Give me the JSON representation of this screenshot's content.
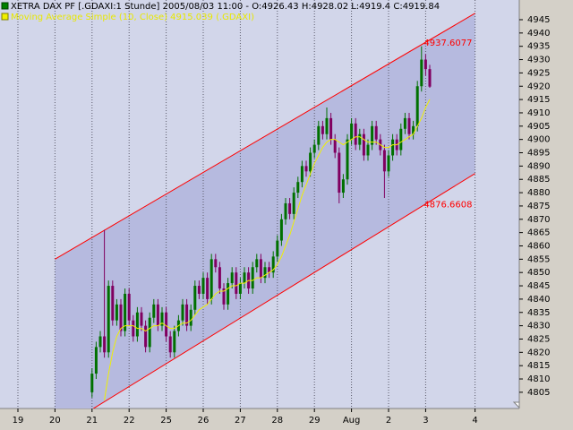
{
  "chart_data": {
    "type": "candlestick",
    "title": "XETRA DAX PF [.GDAXI:1 Stunde] 2005/08/03 11:00 - O:4926.43 H:4928.02 L:4919.4 C:4919.84",
    "categories": [
      "19",
      null,
      null,
      null,
      null,
      null,
      null,
      null,
      null,
      "20",
      null,
      null,
      null,
      null,
      null,
      null,
      null,
      null,
      "21",
      null,
      null,
      null,
      null,
      null,
      null,
      null,
      null,
      "22",
      null,
      null,
      null,
      null,
      null,
      null,
      null,
      null,
      "25",
      null,
      null,
      null,
      null,
      null,
      null,
      null,
      null,
      "26",
      null,
      null,
      null,
      null,
      null,
      null,
      null,
      null,
      "27",
      null,
      null,
      null,
      null,
      null,
      null,
      null,
      null,
      "28",
      null,
      null,
      null,
      null,
      null,
      null,
      null,
      null,
      "29",
      null,
      null,
      null,
      null,
      null,
      null,
      null,
      null,
      "Aug",
      null,
      null,
      null,
      null,
      null,
      null,
      null,
      null,
      "2",
      null,
      null,
      null,
      null,
      null,
      null,
      null,
      null,
      "3",
      null,
      null,
      null,
      null,
      null,
      null,
      null,
      null,
      null,
      null,
      null,
      "4",
      null,
      null,
      null,
      null
    ],
    "open": [
      null,
      null,
      null,
      null,
      null,
      null,
      null,
      null,
      null,
      null,
      null,
      null,
      null,
      null,
      null,
      null,
      null,
      null,
      4805,
      4812,
      4822,
      4826,
      4820,
      4845,
      4832,
      4838,
      4828,
      4842,
      4832,
      4826,
      4835,
      4830,
      4822,
      4833,
      4838,
      4830,
      4835,
      4826,
      4820,
      4828,
      4832,
      4838,
      4830,
      4836,
      4845,
      4842,
      4848,
      4840,
      4855,
      4852,
      4844,
      4838,
      4846,
      4850,
      4842,
      4846,
      4850,
      4844,
      4852,
      4855,
      4848,
      4852,
      4850,
      4856,
      4862,
      4870,
      4876,
      4872,
      4880,
      4884,
      4890,
      4888,
      4895,
      4898,
      4905,
      4902,
      4908,
      4900,
      4895,
      4880,
      4885,
      4900,
      4906,
      4898,
      4902,
      4894,
      4898,
      4905,
      4900,
      4896,
      4888,
      4894,
      4900,
      4896,
      4904,
      4908,
      4902,
      4905,
      4920,
      4930,
      4926.43,
      null,
      null,
      null,
      null,
      null,
      null,
      null,
      null,
      null,
      null,
      null,
      null,
      null,
      null,
      null
    ],
    "high": [
      null,
      null,
      null,
      null,
      null,
      null,
      null,
      null,
      null,
      null,
      null,
      null,
      null,
      null,
      null,
      null,
      null,
      null,
      4814,
      4824,
      4828,
      4866,
      4847,
      4847,
      4840,
      4840,
      4844,
      4844,
      4834,
      4837,
      4837,
      4832,
      4835,
      4840,
      4840,
      4837,
      4837,
      4828,
      4830,
      4834,
      4840,
      4840,
      4838,
      4847,
      4847,
      4850,
      4850,
      4857,
      4857,
      4854,
      4846,
      4848,
      4852,
      4852,
      4848,
      4852,
      4852,
      4854,
      4857,
      4857,
      4854,
      4854,
      4858,
      4864,
      4872,
      4878,
      4878,
      4882,
      4886,
      4892,
      4892,
      4897,
      4900,
      4907,
      4907,
      4912,
      4910,
      4902,
      4897,
      4887,
      4902,
      4908,
      4908,
      4904,
      4904,
      4900,
      4907,
      4907,
      4902,
      4898,
      4896,
      4902,
      4902,
      4906,
      4910,
      4910,
      4907,
      4922,
      4935,
      4932,
      4928.02,
      null,
      null,
      null,
      null,
      null,
      null,
      null,
      null,
      null,
      null,
      null,
      null,
      null,
      null,
      null
    ],
    "low": [
      null,
      null,
      null,
      null,
      null,
      null,
      null,
      null,
      null,
      null,
      null,
      null,
      null,
      null,
      null,
      null,
      null,
      null,
      4803,
      4810,
      4820,
      4818,
      4818,
      4830,
      4830,
      4826,
      4826,
      4830,
      4824,
      4824,
      4828,
      4820,
      4820,
      4831,
      4828,
      4828,
      4824,
      4818,
      4818,
      4826,
      4830,
      4828,
      4828,
      4834,
      4840,
      4840,
      4838,
      4838,
      4850,
      4842,
      4836,
      4836,
      4844,
      4840,
      4840,
      4844,
      4842,
      4842,
      4850,
      4846,
      4846,
      4848,
      4848,
      4854,
      4860,
      4868,
      4870,
      4870,
      4878,
      4882,
      4886,
      4886,
      4893,
      4896,
      4900,
      4900,
      4898,
      4893,
      4876,
      4878,
      4883,
      4898,
      4896,
      4896,
      4892,
      4892,
      4896,
      4898,
      4894,
      4878,
      4886,
      4892,
      4894,
      4894,
      4902,
      4900,
      4900,
      4903,
      4918,
      4924,
      4919.4,
      null,
      null,
      null,
      null,
      null,
      null,
      null,
      null,
      null,
      null,
      null,
      null,
      null,
      null,
      null
    ],
    "close": [
      null,
      null,
      null,
      null,
      null,
      null,
      null,
      null,
      null,
      null,
      null,
      null,
      null,
      null,
      null,
      null,
      null,
      null,
      4812,
      4822,
      4826,
      4820,
      4845,
      4832,
      4838,
      4828,
      4842,
      4832,
      4826,
      4835,
      4830,
      4822,
      4833,
      4838,
      4830,
      4835,
      4826,
      4820,
      4828,
      4832,
      4838,
      4830,
      4836,
      4845,
      4842,
      4848,
      4840,
      4855,
      4852,
      4844,
      4838,
      4846,
      4850,
      4842,
      4846,
      4850,
      4844,
      4852,
      4855,
      4848,
      4852,
      4850,
      4856,
      4862,
      4870,
      4876,
      4872,
      4880,
      4884,
      4890,
      4888,
      4895,
      4898,
      4905,
      4902,
      4908,
      4900,
      4895,
      4880,
      4885,
      4900,
      4906,
      4898,
      4902,
      4894,
      4898,
      4905,
      4900,
      4896,
      4888,
      4894,
      4900,
      4896,
      4904,
      4908,
      4902,
      4905,
      4920,
      4930,
      4926.43,
      4919.84,
      null,
      null,
      null,
      null,
      null,
      null,
      null,
      null,
      null,
      null,
      null,
      null,
      null,
      null,
      null
    ],
    "up_color": "#007000",
    "down_color": "#800060",
    "series": [
      {
        "name": "Moving Average Simple (10, Close) 4915.039 (.GDAXI)",
        "color": "#f0f000",
        "values": [
          null,
          null,
          null,
          null,
          null,
          null,
          null,
          null,
          null,
          null,
          null,
          null,
          null,
          null,
          null,
          null,
          null,
          null,
          null,
          null,
          null,
          4802,
          4812,
          4820,
          4826,
          4829,
          4830,
          4830,
          4830,
          4829,
          4829,
          4828,
          4829,
          4830,
          4830,
          4831,
          4830,
          4829,
          4829,
          4830,
          4831,
          4831,
          4832,
          4834,
          4836,
          4837,
          4838,
          4840,
          4842,
          4843,
          4843,
          4844,
          4845,
          4845,
          4846,
          4846,
          4847,
          4847,
          4848,
          4848,
          4849,
          4850,
          4851,
          4853,
          4856,
          4860,
          4864,
          4869,
          4874,
          4879,
          4883,
          4887,
          4891,
          4894,
          4897,
          4899,
          4900,
          4900,
          4899,
          4898,
          4899,
          4900,
          4901,
          4901,
          4900,
          4899,
          4899,
          4899,
          4898,
          4897,
          4897,
          4898,
          4898,
          4899,
          4900,
          4901,
          4902,
          4905,
          4908,
          4912,
          4915.039,
          null,
          null,
          null,
          null,
          null,
          null,
          null,
          null,
          null,
          null,
          null,
          null,
          null,
          null,
          null
        ]
      }
    ],
    "channel": {
      "x": [
        "20",
        "4"
      ],
      "upper": [
        4855,
        4947.4
      ],
      "lower": [
        4790,
        4887.2
      ],
      "upper_label": "4937.6077",
      "lower_label": "4876.6608",
      "color": "#ff0000"
    },
    "ylim": [
      4798.9,
      4952.4
    ],
    "yticks": [
      4805,
      4810,
      4815,
      4820,
      4825,
      4830,
      4835,
      4840,
      4845,
      4850,
      4855,
      4860,
      4865,
      4870,
      4875,
      4880,
      4885,
      4890,
      4895,
      4900,
      4905,
      4910,
      4915,
      4920,
      4925,
      4930,
      4935,
      4940,
      4945
    ],
    "xgrid": true
  }
}
